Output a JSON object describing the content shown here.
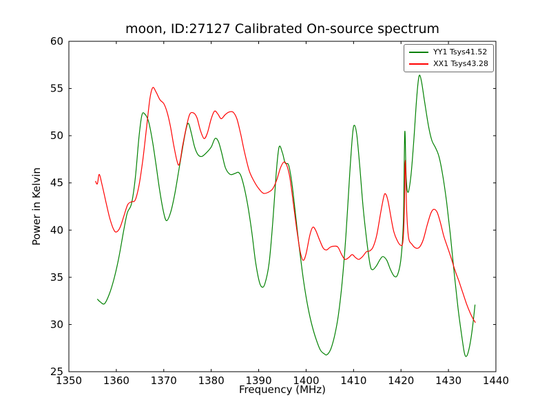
{
  "chart_data": {
    "type": "line",
    "title": "moon, ID:27127 Calibrated On-source spectrum",
    "xlabel": "Frequency (MHz)",
    "ylabel": "Power in Kelvin",
    "xlim": [
      1350,
      1440
    ],
    "ylim": [
      25,
      60
    ],
    "xticks": [
      1350,
      1360,
      1370,
      1380,
      1390,
      1400,
      1410,
      1420,
      1430,
      1440
    ],
    "yticks": [
      25,
      30,
      35,
      40,
      45,
      50,
      55,
      60
    ],
    "grid": false,
    "legend_position": "top-right",
    "background_color": "#ffffff",
    "axes_color": "#000000",
    "series": [
      {
        "name": "YY1 Tsys41.52",
        "color": "#008000",
        "x": [
          1356.0,
          1356.6,
          1357.5,
          1358.5,
          1359.5,
          1360.5,
          1361.5,
          1362.3,
          1363.2,
          1364.0,
          1364.8,
          1365.4,
          1366.0,
          1366.8,
          1367.6,
          1368.4,
          1369.2,
          1370.0,
          1370.6,
          1371.4,
          1372.2,
          1373.0,
          1374.0,
          1374.7,
          1375.2,
          1375.8,
          1376.5,
          1377.2,
          1378.0,
          1379.0,
          1380.0,
          1380.8,
          1381.5,
          1382.2,
          1383.0,
          1384.0,
          1385.0,
          1385.8,
          1386.5,
          1387.5,
          1388.5,
          1389.3,
          1390.0,
          1390.6,
          1391.3,
          1392.2,
          1393.0,
          1393.7,
          1394.3,
          1395.0,
          1395.6,
          1396.3,
          1397.0,
          1397.8,
          1398.6,
          1399.5,
          1400.4,
          1401.3,
          1402.2,
          1403.0,
          1403.8,
          1404.4,
          1405.2,
          1406.0,
          1406.8,
          1407.6,
          1408.4,
          1409.2,
          1409.8,
          1410.2,
          1410.7,
          1411.3,
          1412.0,
          1412.8,
          1413.5,
          1414.0,
          1414.8,
          1415.6,
          1416.2,
          1417.0,
          1417.8,
          1418.6,
          1419.3,
          1420.0,
          1420.5,
          1420.8,
          1421.1,
          1421.5,
          1422.1,
          1422.7,
          1423.3,
          1423.8,
          1424.3,
          1425.0,
          1425.8,
          1426.5,
          1427.3,
          1428.0,
          1428.8,
          1429.6,
          1430.4,
          1431.2,
          1432.0,
          1432.8,
          1433.4,
          1433.9,
          1434.5,
          1435.1,
          1435.6
        ],
        "y": [
          32.7,
          32.4,
          32.2,
          33.2,
          34.8,
          37.0,
          39.8,
          41.8,
          42.8,
          45.5,
          50.0,
          52.2,
          52.3,
          51.5,
          49.5,
          46.8,
          44.0,
          41.8,
          41.0,
          41.8,
          43.5,
          45.8,
          48.8,
          50.7,
          51.3,
          50.3,
          48.8,
          48.0,
          47.8,
          48.2,
          48.8,
          49.7,
          49.4,
          48.2,
          46.6,
          45.9,
          46.0,
          46.1,
          45.4,
          43.2,
          40.0,
          36.8,
          34.8,
          34.0,
          34.3,
          36.5,
          41.0,
          46.0,
          48.8,
          48.2,
          47.1,
          46.9,
          45.0,
          41.5,
          38.0,
          34.5,
          31.8,
          29.8,
          28.3,
          27.3,
          26.9,
          26.8,
          27.4,
          28.8,
          31.0,
          34.5,
          39.5,
          46.0,
          50.2,
          51.1,
          50.0,
          46.8,
          42.5,
          38.8,
          36.3,
          35.8,
          36.2,
          36.9,
          37.2,
          36.8,
          35.8,
          35.1,
          35.3,
          37.0,
          41.0,
          50.4,
          45.5,
          44.0,
          45.8,
          49.5,
          54.0,
          56.3,
          55.8,
          53.5,
          51.0,
          49.5,
          48.7,
          47.8,
          45.8,
          43.0,
          39.5,
          35.5,
          31.8,
          28.8,
          26.9,
          26.7,
          27.8,
          29.8,
          32.1
        ]
      },
      {
        "name": "XX1 Tsys43.28",
        "color": "#ff0000",
        "x": [
          1355.6,
          1356.0,
          1356.4,
          1357.0,
          1357.8,
          1358.6,
          1359.4,
          1360.0,
          1360.8,
          1361.6,
          1362.4,
          1363.2,
          1364.0,
          1364.8,
          1365.6,
          1366.4,
          1367.1,
          1367.7,
          1368.4,
          1369.2,
          1370.0,
          1370.7,
          1371.4,
          1372.1,
          1372.8,
          1373.3,
          1374.0,
          1374.8,
          1375.5,
          1376.3,
          1377.0,
          1377.7,
          1378.5,
          1379.2,
          1380.0,
          1380.7,
          1381.4,
          1382.1,
          1382.9,
          1383.7,
          1384.6,
          1385.4,
          1386.2,
          1387.0,
          1388.0,
          1389.0,
          1390.0,
          1391.0,
          1392.0,
          1393.0,
          1393.8,
          1394.6,
          1395.3,
          1395.9,
          1396.6,
          1397.4,
          1398.1,
          1398.8,
          1399.4,
          1400.0,
          1400.8,
          1401.4,
          1402.0,
          1402.8,
          1403.6,
          1404.3,
          1405.1,
          1405.9,
          1406.7,
          1407.5,
          1408.2,
          1409.0,
          1409.7,
          1410.4,
          1411.1,
          1411.9,
          1412.7,
          1413.4,
          1414.1,
          1414.9,
          1415.7,
          1416.4,
          1416.8,
          1417.3,
          1417.9,
          1418.5,
          1419.2,
          1419.9,
          1420.4,
          1420.7,
          1420.9,
          1421.2,
          1421.6,
          1422.3,
          1423.1,
          1423.9,
          1424.7,
          1425.5,
          1426.3,
          1426.9,
          1427.6,
          1428.3,
          1429.0,
          1429.8,
          1430.6,
          1431.4,
          1432.2,
          1433.0,
          1433.8,
          1434.6,
          1435.3,
          1435.7
        ],
        "y": [
          45.2,
          44.9,
          45.9,
          44.8,
          43.0,
          41.3,
          40.1,
          39.8,
          40.3,
          41.5,
          42.7,
          43.0,
          43.2,
          44.8,
          47.5,
          51.0,
          54.0,
          55.1,
          54.6,
          53.8,
          53.4,
          52.5,
          51.0,
          49.0,
          47.3,
          47.0,
          49.0,
          51.0,
          52.3,
          52.4,
          51.9,
          50.6,
          49.7,
          50.3,
          51.8,
          52.6,
          52.3,
          51.8,
          52.2,
          52.5,
          52.5,
          51.8,
          50.2,
          48.3,
          46.3,
          45.2,
          44.4,
          43.9,
          44.0,
          44.4,
          45.3,
          46.6,
          47.2,
          46.9,
          45.5,
          42.5,
          39.8,
          37.6,
          36.8,
          37.5,
          39.5,
          40.3,
          40.0,
          39.0,
          38.1,
          37.9,
          38.2,
          38.3,
          38.2,
          37.4,
          36.9,
          37.1,
          37.4,
          37.1,
          36.9,
          37.2,
          37.7,
          37.8,
          38.2,
          39.5,
          41.8,
          43.6,
          43.8,
          43.0,
          41.3,
          39.8,
          38.9,
          38.4,
          38.8,
          42.0,
          47.4,
          42.0,
          39.2,
          38.5,
          38.1,
          38.2,
          39.0,
          40.5,
          41.8,
          42.2,
          41.9,
          40.8,
          39.4,
          38.2,
          37.0,
          35.7,
          34.6,
          33.4,
          32.2,
          31.2,
          30.5,
          30.2
        ]
      }
    ]
  }
}
